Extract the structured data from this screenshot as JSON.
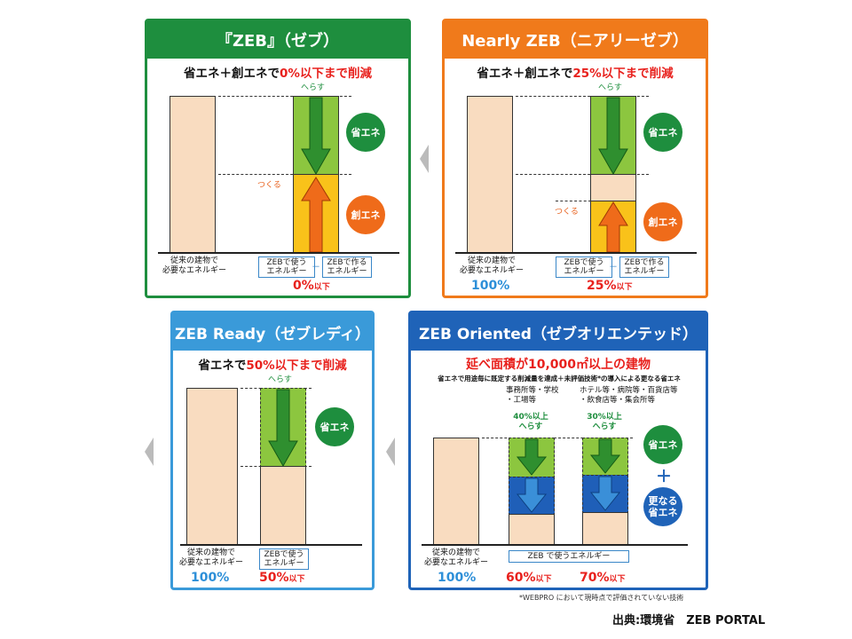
{
  "zeb": {
    "title": "『ZEB』（ゼブ）",
    "subtitle_pre": "省エネ＋創エネで",
    "subtitle_red": "0%以下まで削減",
    "reduce_label": "へらす",
    "create_label": "つくる",
    "save_circle": "省エネ",
    "create_circle": "創エネ",
    "left_label": "従来の建物で\n必要なエネルギー",
    "use_label": "ZEBで使う\nエネルギー",
    "make_label": "ZEBで作る\nエネルギー",
    "minus": "－",
    "pct": "0%",
    "pct_suffix": "以下",
    "color": "#1e8e3e"
  },
  "nearly": {
    "title": "Nearly ZEB（ニアリーゼブ）",
    "subtitle_pre": "省エネ＋創エネで",
    "subtitle_red": "25%以下まで削減",
    "reduce_label": "へらす",
    "create_label": "つくる",
    "save_circle": "省エネ",
    "create_circle": "創エネ",
    "left_label": "従来の建物で\n必要なエネルギー",
    "use_label": "ZEBで使う\nエネルギー",
    "make_label": "ZEBで作る\nエネルギー",
    "minus": "－",
    "left_pct": "100%",
    "pct": "25%",
    "pct_suffix": "以下",
    "color": "#f07a1b"
  },
  "ready": {
    "title": "ZEB Ready（ゼブレディ）",
    "subtitle_pre": "省エネで",
    "subtitle_red": "50%以下まで削減",
    "reduce_label": "へらす",
    "save_circle": "省エネ",
    "left_label": "従来の建物で\n必要なエネルギー",
    "use_label": "ZEBで使う\nエネルギー",
    "left_pct": "100%",
    "pct": "50%",
    "pct_suffix": "以下",
    "color": "#3a9ad9"
  },
  "oriented": {
    "title": "ZEB Oriented（ゼブオリエンテッド）",
    "subtitle_red": "延べ面積が10,000㎡以上の建物",
    "desc": "省エネで用途毎に既定する削減量を達成＋未評価技術*の導入による更なる省エネ",
    "col1_head": "事務所等・学校\n・工場等",
    "col2_head": "ホテル等・病院等・百貨店等\n・飲食店等・集会所等",
    "col1_reduce": "40%以上\nへらす",
    "col2_reduce": "30%以上\nへらす",
    "save_circle": "省エネ",
    "plus": "＋",
    "more_circle": "更なる\n省エネ",
    "left_label": "従来の建物で\n必要なエネルギー",
    "use_label": "ZEB で使うエネルギー",
    "left_pct": "100%",
    "pct1": "60%",
    "pct2": "70%",
    "pct_suffix": "以下",
    "color": "#1f63b8"
  },
  "footnote": "*WEBPRO において現時点で評価されていない技術",
  "source": "出典:環境省　ZEB PORTAL"
}
